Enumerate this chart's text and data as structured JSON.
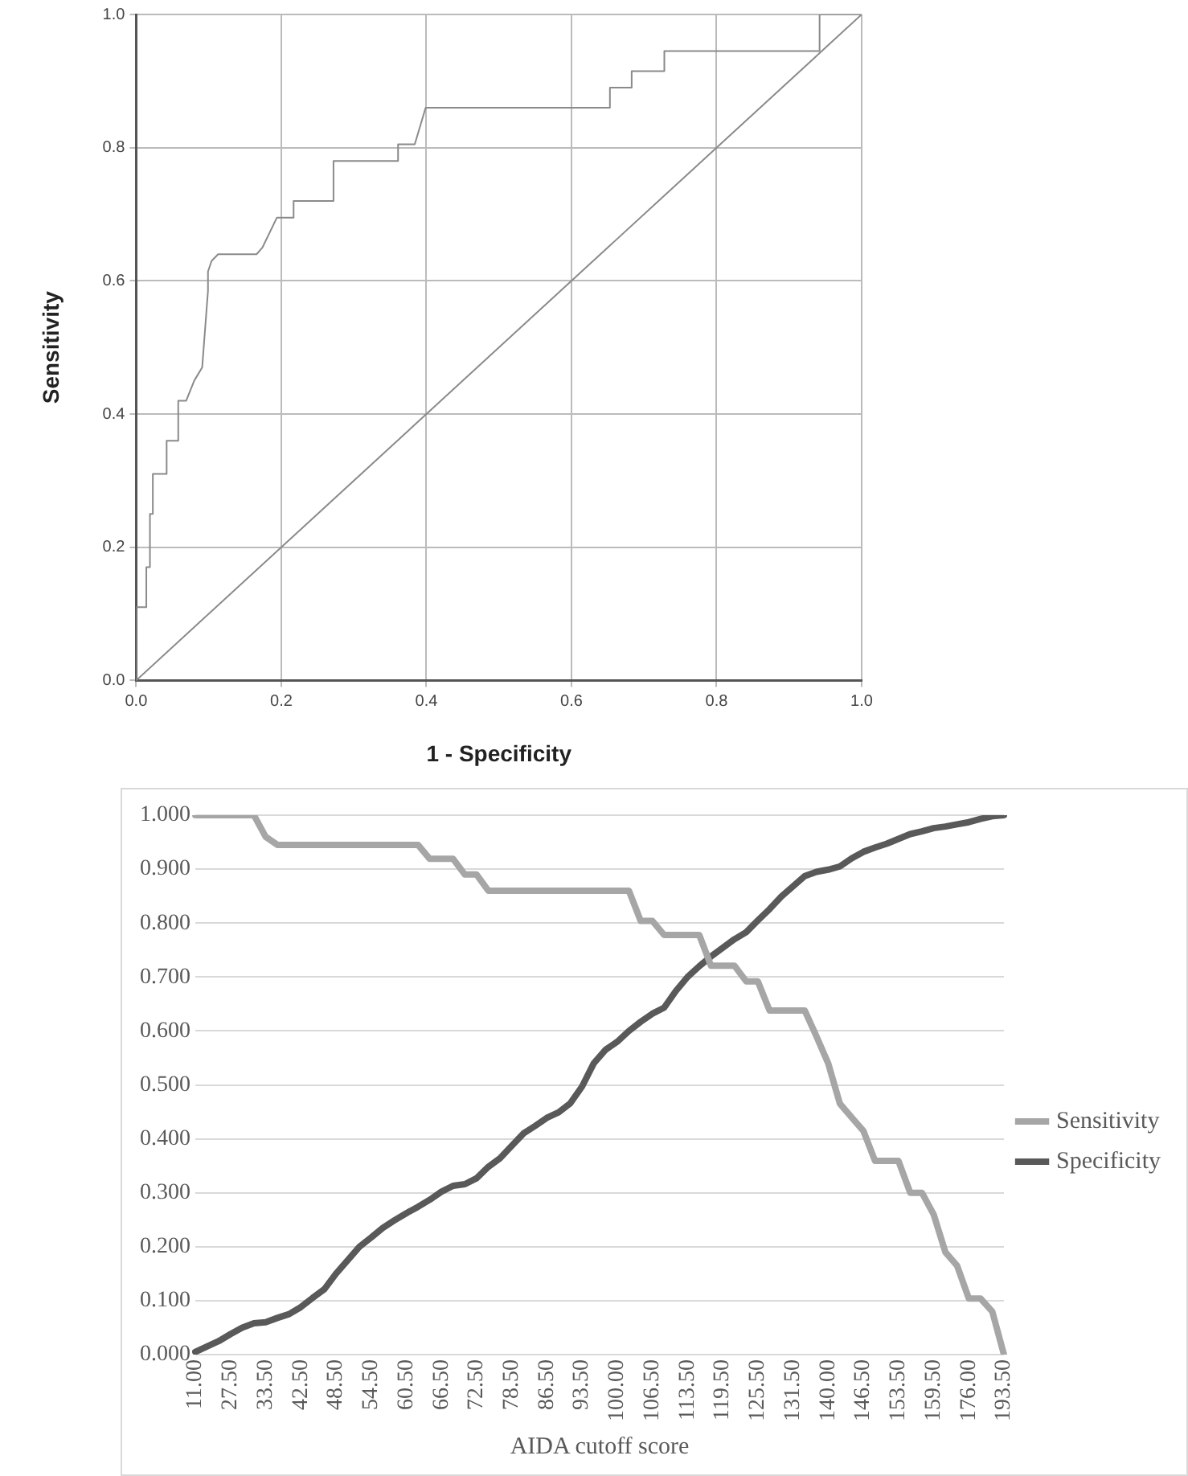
{
  "chart_data": [
    {
      "type": "line",
      "xlabel": "1 - Specificity",
      "ylabel": "Sensitivity",
      "xlim": [
        0,
        1
      ],
      "ylim": [
        0,
        1
      ],
      "xticks": [
        {
          "value": 0,
          "label": "0.0"
        },
        {
          "value": 0.2,
          "label": "0.2"
        },
        {
          "value": 0.4,
          "label": "0.4"
        },
        {
          "value": 0.6,
          "label": "0.6"
        },
        {
          "value": 0.8,
          "label": "0.8"
        },
        {
          "value": 1,
          "label": "1.0"
        }
      ],
      "yticks": [
        {
          "value": 0,
          "label": "0.0"
        },
        {
          "value": 0.2,
          "label": "0.2"
        },
        {
          "value": 0.4,
          "label": "0.4"
        },
        {
          "value": 0.6,
          "label": "0.6"
        },
        {
          "value": 0.8,
          "label": "0.8"
        },
        {
          "value": 1,
          "label": "1.0"
        }
      ],
      "grid": true,
      "legend": false,
      "marker": "none",
      "line_style": "solid",
      "series": [
        {
          "color": "#8a8a8a",
          "x": [
            0,
            0,
            0.014,
            0.014,
            0.019,
            0.019,
            0.023,
            0.023,
            0.042,
            0.042,
            0.058,
            0.058,
            0.069,
            0.08,
            0.091,
            0.099,
            0.099,
            0.104,
            0.113,
            0.166,
            0.174,
            0.194,
            0.217,
            0.217,
            0.272,
            0.272,
            0.361,
            0.361,
            0.384,
            0.399,
            0.653,
            0.653,
            0.683,
            0.683,
            0.728,
            0.728,
            0.942,
            0.942,
            1
          ],
          "values": [
            0,
            0.11,
            0.11,
            0.17,
            0.17,
            0.25,
            0.25,
            0.31,
            0.31,
            0.36,
            0.36,
            0.42,
            0.42,
            0.45,
            0.47,
            0.585,
            0.614,
            0.63,
            0.64,
            0.64,
            0.65,
            0.695,
            0.695,
            0.72,
            0.72,
            0.78,
            0.78,
            0.805,
            0.805,
            0.86,
            0.86,
            0.89,
            0.89,
            0.915,
            0.915,
            0.945,
            0.945,
            1,
            1
          ]
        },
        {
          "color": "#8a8a8a",
          "x": [
            0,
            1
          ],
          "values": [
            0,
            1
          ]
        }
      ]
    },
    {
      "type": "line",
      "xlabel": "AIDA cutoff score",
      "ylim": [
        0,
        1
      ],
      "yticks": [
        {
          "value": 0,
          "label": "0.000"
        },
        {
          "value": 0.1,
          "label": "0.100"
        },
        {
          "value": 0.2,
          "label": "0.200"
        },
        {
          "value": 0.3,
          "label": "0.300"
        },
        {
          "value": 0.4,
          "label": "0.400"
        },
        {
          "value": 0.5,
          "label": "0.500"
        },
        {
          "value": 0.6,
          "label": "0.600"
        },
        {
          "value": 0.7,
          "label": "0.700"
        },
        {
          "value": 0.8,
          "label": "0.800"
        },
        {
          "value": 0.9,
          "label": "0.900"
        },
        {
          "value": 1,
          "label": "1.000"
        }
      ],
      "categories": [
        "11.00",
        null,
        null,
        "27.50",
        null,
        null,
        "33.50",
        null,
        null,
        "42.50",
        null,
        null,
        "48.50",
        null,
        null,
        "54.50",
        null,
        null,
        "60.50",
        null,
        null,
        "66.50",
        null,
        null,
        "72.50",
        null,
        null,
        "78.50",
        null,
        null,
        "86.50",
        null,
        null,
        "93.50",
        null,
        null,
        "100.00",
        null,
        null,
        "106.50",
        null,
        null,
        "113.50",
        null,
        null,
        "119.50",
        null,
        null,
        "125.50",
        null,
        null,
        "131.50",
        null,
        null,
        "140.00",
        null,
        null,
        "146.50",
        null,
        null,
        "153.50",
        null,
        null,
        "159.50",
        null,
        null,
        "176.00",
        null,
        null,
        "193.50"
      ],
      "grid": "y",
      "legend": "right",
      "marker": "none",
      "line_style": "solid",
      "series": [
        {
          "name": "Sensitivity",
          "color": "#a6a6a6",
          "values": [
            1,
            1,
            1,
            1,
            1,
            1,
            0.96,
            0.945,
            0.945,
            0.945,
            0.945,
            0.945,
            0.945,
            0.945,
            0.945,
            0.945,
            0.945,
            0.945,
            0.945,
            0.945,
            0.919,
            0.919,
            0.919,
            0.89,
            0.89,
            0.86,
            0.86,
            0.86,
            0.86,
            0.86,
            0.86,
            0.86,
            0.86,
            0.86,
            0.86,
            0.86,
            0.86,
            0.86,
            0.804,
            0.804,
            0.778,
            0.778,
            0.778,
            0.778,
            0.721,
            0.721,
            0.721,
            0.692,
            0.692,
            0.638,
            0.638,
            0.638,
            0.638,
            0.59,
            0.54,
            0.465,
            0.44,
            0.415,
            0.359,
            0.359,
            0.359,
            0.3,
            0.3,
            0.26,
            0.19,
            0.165,
            0.104,
            0.104,
            0.08,
            0
          ]
        },
        {
          "name": "Specificity",
          "color": "#595959",
          "values": [
            0.005,
            0.015,
            0.025,
            0.038,
            0.05,
            0.058,
            0.06,
            0.068,
            0.075,
            0.088,
            0.105,
            0.121,
            0.15,
            0.175,
            0.2,
            0.217,
            0.235,
            0.249,
            0.262,
            0.274,
            0.287,
            0.302,
            0.313,
            0.316,
            0.327,
            0.348,
            0.364,
            0.387,
            0.41,
            0.424,
            0.439,
            0.449,
            0.466,
            0.497,
            0.54,
            0.565,
            0.58,
            0.6,
            0.617,
            0.632,
            0.643,
            0.674,
            0.7,
            0.72,
            0.738,
            0.754,
            0.77,
            0.783,
            0.805,
            0.826,
            0.849,
            0.868,
            0.887,
            0.895,
            0.899,
            0.905,
            0.92,
            0.932,
            0.94,
            0.947,
            0.956,
            0.965,
            0.97,
            0.976,
            0.979,
            0.983,
            0.987,
            0.993,
            0.998,
            1
          ]
        }
      ]
    }
  ]
}
